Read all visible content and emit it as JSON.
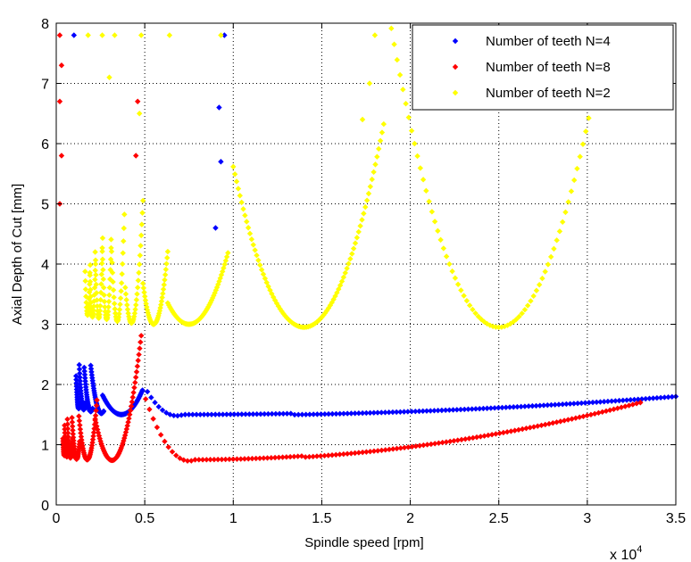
{
  "chart_data": {
    "type": "scatter",
    "xlabel": "Spindle speed [rpm]",
    "ylabel": "Axial Depth of Cut [mm]",
    "x_multiplier_label": "x 10",
    "x_multiplier_exponent": "4",
    "xlim": [
      0,
      35000
    ],
    "ylim": [
      0,
      8
    ],
    "xticks": [
      0,
      5000,
      10000,
      15000,
      20000,
      25000,
      30000,
      35000
    ],
    "xtick_labels": [
      "0",
      "0.5",
      "1",
      "1.5",
      "2",
      "2.5",
      "3",
      "3.5"
    ],
    "yticks": [
      0,
      1,
      2,
      3,
      4,
      5,
      6,
      7,
      8
    ],
    "ytick_labels": [
      "0",
      "1",
      "2",
      "3",
      "4",
      "5",
      "6",
      "7",
      "8"
    ],
    "grid": true,
    "grid_style": "dotted",
    "legend_position": "top-right",
    "marker": "diamond",
    "series": [
      {
        "name": "Number of teeth N=4",
        "color": "#0000ff",
        "min_depth": 1.48,
        "main_lobe_peak_x": 9500,
        "lobes": [
          {
            "c": 6800,
            "a": 2850,
            "f": 12000,
            "d": 1.48,
            "x0": 5150,
            "x1": 35000,
            "n": 140,
            "y1": 1.8
          },
          {
            "c": 3680,
            "a": 1200,
            "f": 9800,
            "d": 1.5,
            "x0": 2620,
            "x1": 4870,
            "n": 55
          },
          {
            "c": 2550,
            "a": 560,
            "f": 9000,
            "d": 1.52,
            "x0": 1950,
            "x1": 2680,
            "n": 35
          },
          {
            "c": 1950,
            "a": 350,
            "f": 8500,
            "d": 1.55,
            "x0": 1580,
            "x1": 2050,
            "n": 30
          },
          {
            "c": 1550,
            "a": 230,
            "f": 8200,
            "d": 1.58,
            "x0": 1300,
            "x1": 1650,
            "n": 28
          },
          {
            "c": 1270,
            "a": 160,
            "f": 8000,
            "d": 1.6,
            "x0": 1120,
            "x1": 1330,
            "n": 24
          }
        ],
        "points": [
          [
            1000,
            7.8
          ],
          [
            9500,
            7.8
          ],
          [
            9200,
            6.6
          ],
          [
            9300,
            5.7
          ],
          [
            9000,
            4.6
          ]
        ]
      },
      {
        "name": "Number of teeth N=8",
        "color": "#ff0000",
        "min_depth": 0.73,
        "main_lobe_peak_x": 4600,
        "lobes": [
          {
            "c": 7500,
            "a": 2450,
            "f": 12000,
            "d": 0.73,
            "x0": 5050,
            "x1": 33000,
            "n": 130,
            "y1": 1.7
          },
          {
            "c": 3150,
            "a": 900,
            "f": 8000,
            "d": 0.74,
            "x0": 2200,
            "x1": 4800,
            "n": 60
          },
          {
            "c": 1750,
            "a": 420,
            "f": 7500,
            "d": 0.75,
            "x0": 1280,
            "x1": 2300,
            "n": 40
          },
          {
            "c": 1150,
            "a": 230,
            "f": 7000,
            "d": 0.76,
            "x0": 890,
            "x1": 1320,
            "n": 30
          },
          {
            "c": 800,
            "a": 150,
            "f": 6500,
            "d": 0.78,
            "x0": 630,
            "x1": 920,
            "n": 26
          },
          {
            "c": 600,
            "a": 100,
            "f": 6000,
            "d": 0.8,
            "x0": 470,
            "x1": 650,
            "n": 22
          },
          {
            "c": 460,
            "a": 70,
            "f": 6000,
            "d": 0.82,
            "x0": 380,
            "x1": 490,
            "n": 18
          }
        ],
        "points": [
          [
            200,
            7.8
          ],
          [
            300,
            7.3
          ],
          [
            200,
            6.7
          ],
          [
            4600,
            6.7
          ],
          [
            300,
            5.8
          ],
          [
            200,
            5.0
          ],
          [
            4500,
            5.8
          ]
        ]
      },
      {
        "name": "Number of teeth N=2",
        "color": "#ffff00",
        "min_depth": 2.95,
        "main_lobe_peak_x": 19000,
        "lobes": [
          {
            "c": 25000,
            "a": 6500,
            "f": 25000,
            "d": 2.95,
            "x0": 18600,
            "x1": 35000,
            "n": 100
          },
          {
            "c": 14000,
            "a": 4200,
            "f": 20000,
            "d": 2.95,
            "x0": 10000,
            "x1": 18500,
            "n": 90
          },
          {
            "c": 7500,
            "a": 2000,
            "f": 14000,
            "d": 3.0,
            "x0": 6300,
            "x1": 9700,
            "n": 55
          },
          {
            "c": 5500,
            "a": 700,
            "f": 12000,
            "d": 3.0,
            "x0": 4900,
            "x1": 6300,
            "n": 40
          },
          {
            "c": 4250,
            "a": 400,
            "f": 10000,
            "d": 3.02,
            "x0": 3900,
            "x1": 4900,
            "n": 30
          },
          {
            "c": 3450,
            "a": 250,
            "f": 9000,
            "d": 3.05,
            "x0": 3100,
            "x1": 3850,
            "n": 28
          },
          {
            "c": 2850,
            "a": 180,
            "f": 8000,
            "d": 3.08,
            "x0": 2600,
            "x1": 3100,
            "n": 24
          },
          {
            "c": 2400,
            "a": 140,
            "f": 7500,
            "d": 3.1,
            "x0": 2200,
            "x1": 2620,
            "n": 22
          },
          {
            "c": 2050,
            "a": 110,
            "f": 7000,
            "d": 3.12,
            "x0": 1900,
            "x1": 2220,
            "n": 20
          },
          {
            "c": 1770,
            "a": 90,
            "f": 6500,
            "d": 3.15,
            "x0": 1630,
            "x1": 1920,
            "n": 18
          }
        ],
        "points": [
          [
            1800,
            7.8
          ],
          [
            2600,
            7.8
          ],
          [
            3300,
            7.8
          ],
          [
            4800,
            7.8
          ],
          [
            6400,
            7.8
          ],
          [
            9300,
            7.8
          ],
          [
            18000,
            7.8
          ],
          [
            17700,
            7.0
          ],
          [
            3000,
            7.1
          ],
          [
            17300,
            6.4
          ],
          [
            4700,
            6.5
          ]
        ]
      }
    ]
  }
}
